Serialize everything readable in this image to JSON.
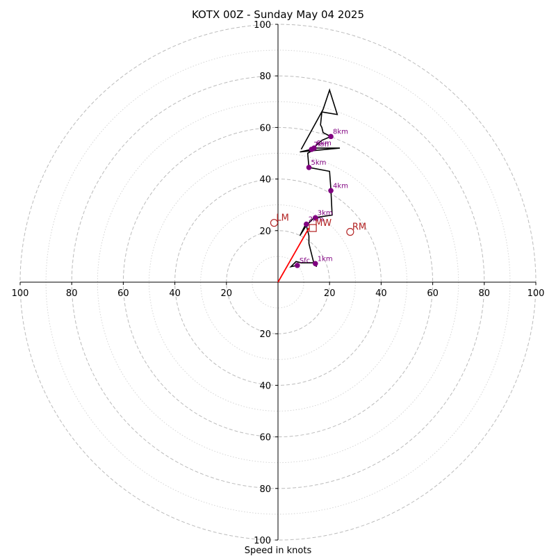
{
  "chart_data": {
    "type": "hodograph",
    "title": "KOTX 00Z - Sunday May 04 2025",
    "xlabel": "Speed in knots",
    "range": [
      -100,
      100
    ],
    "tick_values": [
      20,
      40,
      60,
      80,
      100
    ],
    "tick_labels": [
      "20",
      "40",
      "60",
      "80",
      "100"
    ],
    "grid": true,
    "colors": {
      "trace": "#000000",
      "height_markers": "#800080",
      "storm_motion": "#b22222",
      "shear_vector": "#ff0000",
      "rings_major": "#bbbbbb",
      "rings_minor": "#d0d0d0"
    },
    "hodograph_trace": [
      [
        7.5,
        6.5
      ],
      [
        5,
        6
      ],
      [
        7,
        8
      ],
      [
        9,
        7.5
      ],
      [
        14,
        7.5
      ],
      [
        15,
        6
      ],
      [
        14,
        7
      ],
      [
        12,
        15
      ],
      [
        12,
        18
      ],
      [
        11,
        22
      ],
      [
        11,
        23
      ],
      [
        8.5,
        18
      ],
      [
        11,
        22
      ],
      [
        14,
        25
      ],
      [
        21,
        26
      ],
      [
        20.5,
        36
      ],
      [
        20,
        43
      ],
      [
        12,
        44.5
      ],
      [
        11.5,
        50
      ],
      [
        15,
        52
      ],
      [
        8.5,
        50.5
      ],
      [
        24,
        52
      ],
      [
        13,
        52
      ],
      [
        12.5,
        51
      ],
      [
        17,
        55
      ],
      [
        20.5,
        56.5
      ],
      [
        17.5,
        58
      ],
      [
        17,
        60
      ],
      [
        16.5,
        61
      ],
      [
        17,
        66
      ],
      [
        23,
        65
      ],
      [
        20,
        74.5
      ],
      [
        17.5,
        67
      ],
      [
        9,
        51.5
      ]
    ],
    "height_markers": [
      {
        "label": "Sfc",
        "u": 7.5,
        "v": 6.5
      },
      {
        "label": "1km",
        "u": 14.5,
        "v": 7.2
      },
      {
        "label": "2km",
        "u": 11,
        "v": 22.5
      },
      {
        "label": "3km",
        "u": 14.5,
        "v": 25
      },
      {
        "label": "4km",
        "u": 20.5,
        "v": 35.5
      },
      {
        "label": "5km",
        "u": 12,
        "v": 44.5
      },
      {
        "label": "6km",
        "u": 14,
        "v": 52
      },
      {
        "label": "7km",
        "u": 13,
        "v": 51.5
      },
      {
        "label": "8km",
        "u": 20.5,
        "v": 56.5
      }
    ],
    "storm_motion": [
      {
        "label": "LM",
        "u": -1.5,
        "v": 23,
        "marker": "circle"
      },
      {
        "label": "MW",
        "u": 13.5,
        "v": 21,
        "marker": "square"
      },
      {
        "label": "RM",
        "u": 28,
        "v": 19.5,
        "marker": "circle"
      }
    ],
    "shear_vector": {
      "from": [
        0,
        0
      ],
      "to": [
        12,
        21
      ]
    }
  }
}
